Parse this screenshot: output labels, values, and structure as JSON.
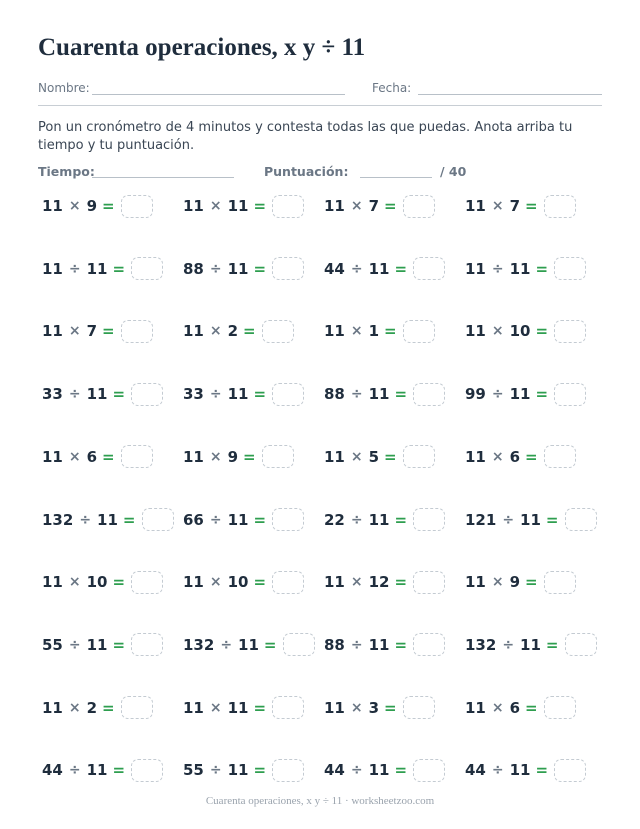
{
  "header": {
    "title": "Cuarenta operaciones, x y ÷ 11",
    "name_label": "Nombre:",
    "date_label": "Fecha:"
  },
  "instructions": "Pon un cronómetro de 4 minutos y contesta todas las que puedas. Anota arriba tu tiempo y tu puntuación.",
  "score": {
    "time_label": "Tiempo:",
    "score_label": "Puntuación:",
    "total": "/ 40"
  },
  "problems": [
    [
      {
        "a": 11,
        "op": "×",
        "b": 9,
        "eq": "="
      },
      {
        "a": 11,
        "op": "×",
        "b": 11,
        "eq": "="
      },
      {
        "a": 11,
        "op": "×",
        "b": 7,
        "eq": "="
      },
      {
        "a": 11,
        "op": "×",
        "b": 7,
        "eq": "="
      }
    ],
    [
      {
        "a": 11,
        "op": "÷",
        "b": 11,
        "eq": "="
      },
      {
        "a": 88,
        "op": "÷",
        "b": 11,
        "eq": "="
      },
      {
        "a": 44,
        "op": "÷",
        "b": 11,
        "eq": "="
      },
      {
        "a": 11,
        "op": "÷",
        "b": 11,
        "eq": "="
      }
    ],
    [
      {
        "a": 11,
        "op": "×",
        "b": 7,
        "eq": "="
      },
      {
        "a": 11,
        "op": "×",
        "b": 2,
        "eq": "="
      },
      {
        "a": 11,
        "op": "×",
        "b": 1,
        "eq": "="
      },
      {
        "a": 11,
        "op": "×",
        "b": 10,
        "eq": "="
      }
    ],
    [
      {
        "a": 33,
        "op": "÷",
        "b": 11,
        "eq": "="
      },
      {
        "a": 33,
        "op": "÷",
        "b": 11,
        "eq": "="
      },
      {
        "a": 88,
        "op": "÷",
        "b": 11,
        "eq": "="
      },
      {
        "a": 99,
        "op": "÷",
        "b": 11,
        "eq": "="
      }
    ],
    [
      {
        "a": 11,
        "op": "×",
        "b": 6,
        "eq": "="
      },
      {
        "a": 11,
        "op": "×",
        "b": 9,
        "eq": "="
      },
      {
        "a": 11,
        "op": "×",
        "b": 5,
        "eq": "="
      },
      {
        "a": 11,
        "op": "×",
        "b": 6,
        "eq": "="
      }
    ],
    [
      {
        "a": 132,
        "op": "÷",
        "b": 11,
        "eq": "="
      },
      {
        "a": 66,
        "op": "÷",
        "b": 11,
        "eq": "="
      },
      {
        "a": 22,
        "op": "÷",
        "b": 11,
        "eq": "="
      },
      {
        "a": 121,
        "op": "÷",
        "b": 11,
        "eq": "="
      }
    ],
    [
      {
        "a": 11,
        "op": "×",
        "b": 10,
        "eq": "="
      },
      {
        "a": 11,
        "op": "×",
        "b": 10,
        "eq": "="
      },
      {
        "a": 11,
        "op": "×",
        "b": 12,
        "eq": "="
      },
      {
        "a": 11,
        "op": "×",
        "b": 9,
        "eq": "="
      }
    ],
    [
      {
        "a": 55,
        "op": "÷",
        "b": 11,
        "eq": "="
      },
      {
        "a": 132,
        "op": "÷",
        "b": 11,
        "eq": "="
      },
      {
        "a": 88,
        "op": "÷",
        "b": 11,
        "eq": "="
      },
      {
        "a": 132,
        "op": "÷",
        "b": 11,
        "eq": "="
      }
    ],
    [
      {
        "a": 11,
        "op": "×",
        "b": 2,
        "eq": "="
      },
      {
        "a": 11,
        "op": "×",
        "b": 11,
        "eq": "="
      },
      {
        "a": 11,
        "op": "×",
        "b": 3,
        "eq": "="
      },
      {
        "a": 11,
        "op": "×",
        "b": 6,
        "eq": "="
      }
    ],
    [
      {
        "a": 44,
        "op": "÷",
        "b": 11,
        "eq": "="
      },
      {
        "a": 55,
        "op": "÷",
        "b": 11,
        "eq": "="
      },
      {
        "a": 44,
        "op": "÷",
        "b": 11,
        "eq": "="
      },
      {
        "a": 44,
        "op": "÷",
        "b": 11,
        "eq": "="
      }
    ]
  ],
  "footer": "Cuarenta operaciones, x y ÷ 11 · worksheetzoo.com"
}
